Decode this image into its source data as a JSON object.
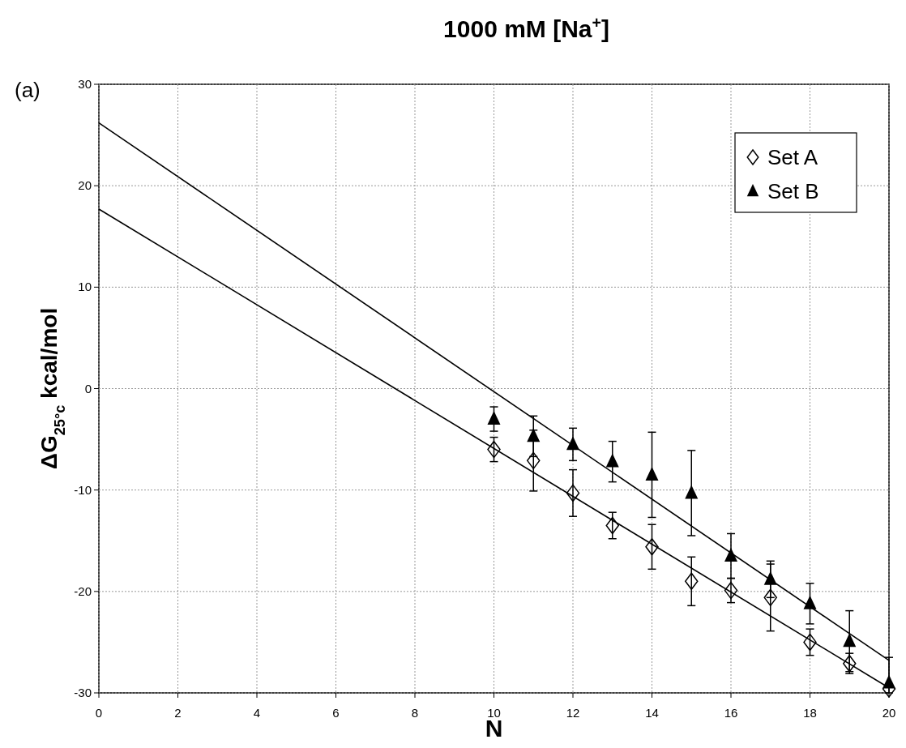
{
  "chart_data": {
    "type": "scatter",
    "title": "1000 mM [Na$^{+}$]",
    "xlabel": "N",
    "ylabel": "ΔG$_{25°c}$ kcal/mol",
    "annotations": [
      "(a)"
    ],
    "xlim": [
      0,
      20
    ],
    "xticks": [
      0,
      2,
      4,
      6,
      8,
      10,
      12,
      14,
      16,
      18,
      20
    ],
    "ylim": [
      -30,
      30
    ],
    "yticks": [
      -30,
      -20,
      -10,
      0,
      10,
      20,
      30
    ],
    "grid": true,
    "legend": "top right",
    "series": [
      {
        "name": "Set A",
        "type": "scatter",
        "marker": "diamond",
        "color": "#000000",
        "x": [
          10,
          11,
          12,
          13,
          14,
          15,
          16,
          17,
          18,
          19,
          20
        ],
        "values": [
          -6,
          -7.1,
          -10.3,
          -13.5,
          -15.6,
          -19,
          -19.9,
          -20.6,
          -25,
          -27.1,
          -29.6
        ],
        "errors": [
          1.2,
          3,
          2.3,
          1.3,
          2.2,
          2.4,
          1.2,
          3.3,
          1.3,
          1,
          null
        ]
      },
      {
        "name": "Set B",
        "type": "scatter",
        "marker": "triangle",
        "color": "#000000",
        "x": [
          10,
          11,
          12,
          13,
          14,
          15,
          16,
          17,
          18,
          19,
          20
        ],
        "values": [
          -3,
          -4.7,
          -5.5,
          -7.2,
          -8.5,
          -10.3,
          -16.5,
          -18.8,
          -21.2,
          -24.9,
          -29
        ],
        "errors": [
          1.2,
          2,
          1.6,
          2,
          4.2,
          4.2,
          2.2,
          1.8,
          2,
          3,
          [
            -30,
            -26.5
          ]
        ]
      },
      {
        "type": "line",
        "marker": "none",
        "line_style": "solid",
        "color": "#000000",
        "x": [
          0,
          20
        ],
        "values": [
          26.2,
          -26.8
        ]
      },
      {
        "type": "line",
        "marker": "none",
        "line_style": "solid",
        "color": "#000000",
        "x": [
          0,
          20
        ],
        "values": [
          17.7,
          -29.5
        ]
      }
    ]
  }
}
